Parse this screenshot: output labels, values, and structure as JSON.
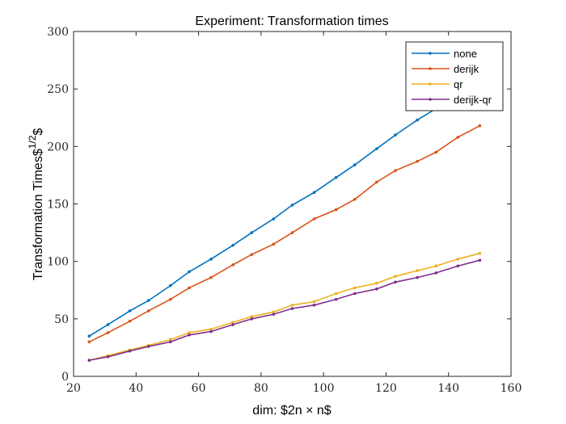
{
  "chart_data": {
    "type": "line",
    "title": "Experiment: Transformation times",
    "xlabel": "dim: $2n × n$",
    "ylabel_main": "Transformation Times$",
    "ylabel_sup": "1/2",
    "ylabel_tail": "$",
    "xlim": [
      20,
      160
    ],
    "ylim": [
      0,
      300
    ],
    "xticks": [
      20,
      40,
      60,
      80,
      100,
      120,
      140,
      160
    ],
    "yticks": [
      0,
      50,
      100,
      150,
      200,
      250,
      300
    ],
    "grid": false,
    "legend_position": "top-right",
    "x": [
      25,
      31,
      38,
      44,
      51,
      57,
      64,
      71,
      77,
      84,
      90,
      97,
      104,
      110,
      117,
      123,
      130,
      136,
      143,
      150
    ],
    "series": [
      {
        "name": "none",
        "color": "#0072BD",
        "values": [
          35,
          45,
          57,
          66,
          79,
          91,
          102,
          114,
          125,
          137,
          149,
          160,
          173,
          184,
          198,
          210,
          223,
          233,
          243,
          254
        ]
      },
      {
        "name": "derijk",
        "color": "#D95319",
        "values": [
          30,
          38,
          48,
          57,
          67,
          77,
          86,
          97,
          106,
          115,
          125,
          137,
          145,
          154,
          169,
          179,
          187,
          195,
          208,
          218
        ]
      },
      {
        "name": "qr",
        "color": "#EDB120",
        "values": [
          14,
          18,
          23,
          27,
          32,
          38,
          41,
          47,
          52,
          56,
          62,
          65,
          72,
          77,
          81,
          87,
          92,
          96,
          102,
          107
        ]
      },
      {
        "name": "derijk-qr",
        "color": "#7E2F8E",
        "values": [
          14,
          17,
          22,
          26,
          30,
          36,
          39,
          45,
          50,
          54,
          59,
          62,
          67,
          72,
          76,
          82,
          86,
          90,
          96,
          101
        ]
      }
    ]
  }
}
